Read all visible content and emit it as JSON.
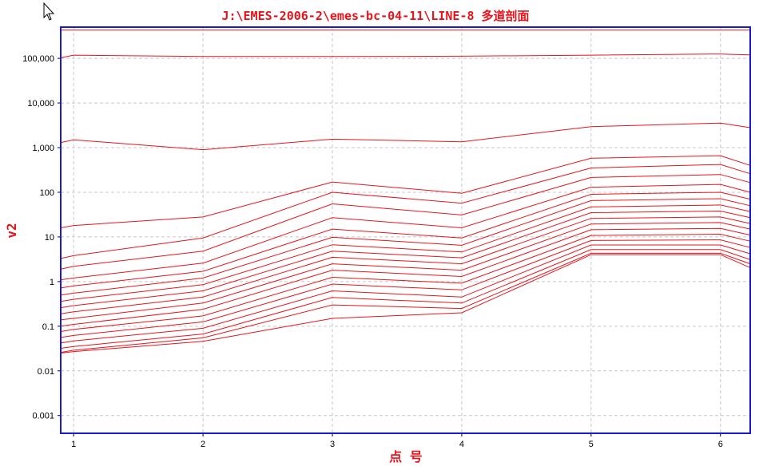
{
  "title": "J:\\EMES-2006-2\\emes-bc-04-11\\LINE-8 多道剖面",
  "chart_data": {
    "type": "line",
    "xlabel": "点 号",
    "ylabel": "v2",
    "ylim": [
      0.0004,
      500000
    ],
    "xlim": [
      0.9,
      6.23
    ],
    "y_scale": "log",
    "grid": true,
    "x": [
      0.9,
      1,
      2,
      3,
      4,
      5,
      6,
      6.23
    ],
    "x_ticks": [
      "1",
      "2",
      "3",
      "4",
      "5",
      "6"
    ],
    "y_ticks": [
      "0.001",
      "0.01",
      "0.1",
      "1",
      "10",
      "100",
      "1,000",
      "10,000",
      "100,000"
    ],
    "series": [
      {
        "values": [
          430000,
          430000,
          430000,
          430000,
          430000,
          430000,
          430000,
          430000
        ]
      },
      {
        "values": [
          103000,
          118000,
          110000,
          110000,
          112000,
          118000,
          125000,
          120000
        ]
      },
      {
        "values": [
          1300,
          1500,
          900,
          1550,
          1350,
          2950,
          3550,
          2800
        ]
      },
      {
        "values": [
          16,
          18,
          28,
          170,
          95,
          580,
          660,
          400
        ]
      },
      {
        "values": [
          3.3,
          3.8,
          9.5,
          100,
          57,
          350,
          420,
          260
        ]
      },
      {
        "values": [
          1.9,
          2.2,
          4.8,
          55,
          31,
          215,
          250,
          165
        ]
      },
      {
        "values": [
          1.1,
          1.2,
          2.6,
          27,
          16,
          130,
          150,
          100
        ]
      },
      {
        "values": [
          0.72,
          0.8,
          1.7,
          15,
          9.5,
          90,
          100,
          70
        ]
      },
      {
        "values": [
          0.5,
          0.55,
          1.2,
          9.8,
          6.5,
          65,
          72,
          50
        ]
      },
      {
        "values": [
          0.36,
          0.4,
          0.85,
          6.7,
          4.6,
          47,
          52,
          37
        ]
      },
      {
        "values": [
          0.26,
          0.29,
          0.62,
          4.8,
          3.4,
          35,
          38,
          27
        ]
      },
      {
        "values": [
          0.19,
          0.21,
          0.45,
          3.5,
          2.5,
          26,
          28,
          20
        ]
      },
      {
        "values": [
          0.14,
          0.15,
          0.33,
          2.5,
          1.8,
          19.5,
          21,
          15
        ]
      },
      {
        "values": [
          0.1,
          0.11,
          0.24,
          1.8,
          1.3,
          14.5,
          15.5,
          11
        ]
      },
      {
        "values": [
          0.076,
          0.085,
          0.17,
          1.25,
          0.92,
          10.8,
          11.5,
          8
        ]
      },
      {
        "values": [
          0.056,
          0.062,
          0.125,
          0.88,
          0.65,
          8.3,
          8.6,
          5.8
        ]
      },
      {
        "values": [
          0.042,
          0.047,
          0.09,
          0.62,
          0.45,
          6.6,
          6.6,
          4.2
        ]
      },
      {
        "values": [
          0.032,
          0.035,
          0.067,
          0.44,
          0.33,
          5.2,
          5.2,
          3.1
        ]
      },
      {
        "values": [
          0.026,
          0.029,
          0.055,
          0.3,
          0.25,
          4.3,
          4.3,
          2.5
        ]
      },
      {
        "values": [
          0.025,
          0.027,
          0.046,
          0.15,
          0.2,
          4,
          4,
          2.05
        ]
      }
    ]
  },
  "colors": {
    "line": "#e8141c",
    "plot_border": "#1a1ad6",
    "grid": "#c8c8c8",
    "title": "#e8141c"
  },
  "icons": {
    "cursor": "mouse-pointer-icon"
  }
}
